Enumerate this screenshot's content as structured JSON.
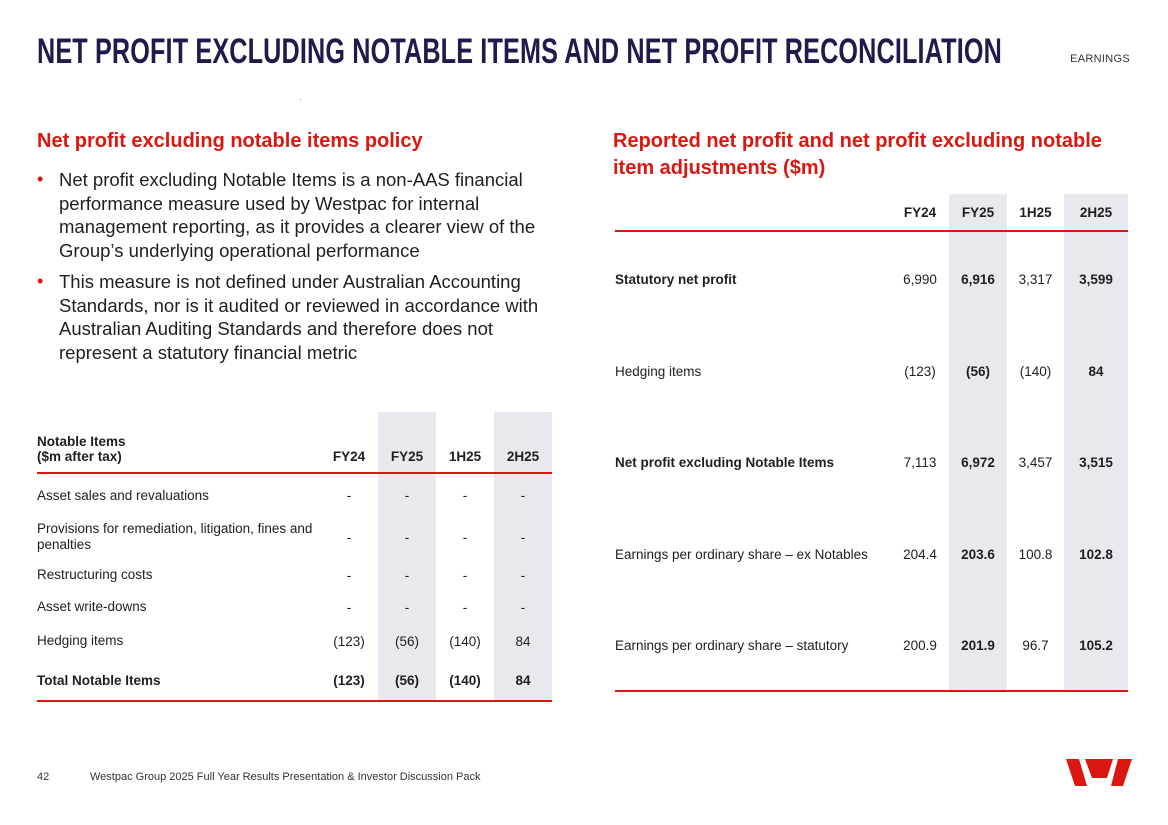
{
  "header": {
    "title": "NET PROFIT EXCLUDING NOTABLE ITEMS AND NET PROFIT RECONCILIATION",
    "section": "EARNINGS"
  },
  "policy": {
    "heading": "Net profit excluding notable items policy",
    "bullets": [
      "Net profit excluding Notable Items is a non-AAS financial performance measure used by Westpac for internal management reporting, as it provides a clearer view of the Group’s underlying operational performance",
      "This measure is not defined under Australian Accounting Standards, nor is it audited or reviewed in accordance with Australian Auditing Standards and therefore does not represent a statutory financial metric"
    ]
  },
  "notable_table": {
    "header_line1": "Notable Items",
    "header_line2": "($m after tax)",
    "columns": [
      "FY24",
      "FY25",
      "1H25",
      "2H25"
    ],
    "rows": [
      {
        "label": "Asset sales and revaluations",
        "values": [
          "-",
          "-",
          "-",
          "-"
        ]
      },
      {
        "label": "Provisions for remediation, litigation, fines and penalties",
        "values": [
          "-",
          "-",
          "-",
          "-"
        ]
      },
      {
        "label": "Restructuring costs",
        "values": [
          "-",
          "-",
          "-",
          "-"
        ]
      },
      {
        "label": "Asset write-downs",
        "values": [
          "-",
          "-",
          "-",
          "-"
        ]
      },
      {
        "label": "Hedging items",
        "values": [
          "(123)",
          "(56)",
          "(140)",
          "84"
        ]
      },
      {
        "label": "Total Notable Items",
        "values": [
          "(123)",
          "(56)",
          "(140)",
          "84"
        ]
      }
    ]
  },
  "reconciliation": {
    "heading": "Reported net profit and net profit excluding notable item adjustments ($m)",
    "columns": [
      "FY24",
      "FY25",
      "1H25",
      "2H25"
    ],
    "rows": [
      {
        "label": "Statutory net profit",
        "values": [
          "6,990",
          "6,916",
          "3,317",
          "3,599"
        ]
      },
      {
        "label": "Hedging items",
        "values": [
          "(123)",
          "(56)",
          "(140)",
          "84"
        ]
      },
      {
        "label": "Net profit excluding Notable Items",
        "values": [
          "7,113",
          "6,972",
          "3,457",
          "3,515"
        ]
      },
      {
        "label": "Earnings per ordinary share – ex Notables",
        "values": [
          "204.4",
          "203.6",
          "100.8",
          "102.8"
        ]
      },
      {
        "label": "Earnings per ordinary share – statutory",
        "values": [
          "200.9",
          "201.9",
          "96.7",
          "105.2"
        ]
      }
    ]
  },
  "footer": {
    "page_number": "42",
    "text": "Westpac Group 2025 Full Year Results Presentation & Investor Discussion Pack"
  },
  "colors": {
    "brand_red": "#da1710",
    "title_navy": "#1f1c4d",
    "shade": "#e8e8ee"
  },
  "logo_icon": "westpac-w-logo"
}
